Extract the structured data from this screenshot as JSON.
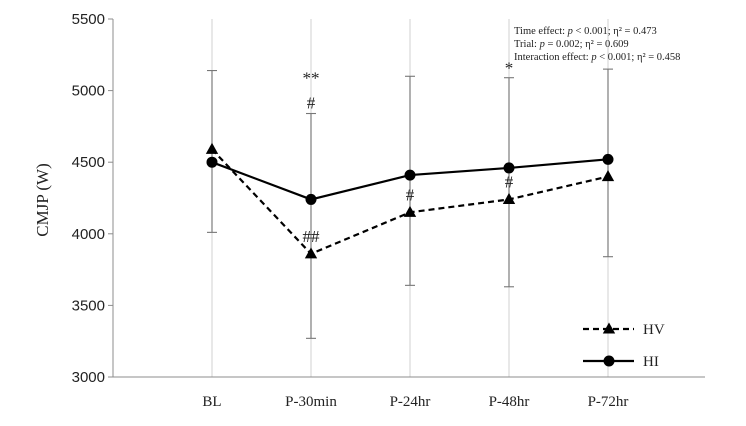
{
  "chart_data": {
    "type": "line",
    "ylabel": "CMJP (W)",
    "ylim": [
      3000,
      5500
    ],
    "yticks": [
      3000,
      3500,
      4000,
      4500,
      5000,
      5500
    ],
    "categories": [
      "BL",
      "P-30min",
      "P-24hr",
      "P-48hr",
      "P-72hr"
    ],
    "grid": "vertical",
    "legend_position": "bottom-right",
    "series": [
      {
        "name": "HV",
        "marker": "triangle",
        "line_style": "dashed",
        "values": [
          4590,
          3860,
          4150,
          4240,
          4400
        ],
        "sig_labels": [
          "",
          "##",
          "#",
          "#",
          ""
        ]
      },
      {
        "name": "HI",
        "marker": "circle",
        "line_style": "solid",
        "values": [
          4500,
          4240,
          4410,
          4460,
          4520
        ],
        "sig_labels": [
          "",
          "#",
          "",
          "",
          ""
        ]
      }
    ],
    "error_bars": [
      {
        "category": "BL",
        "lower": 4010,
        "upper": 5140
      },
      {
        "category": "P-30min",
        "lower": 3270,
        "upper": 4840
      },
      {
        "category": "P-24hr",
        "lower": 3640,
        "upper": 5100
      },
      {
        "category": "P-48hr",
        "lower": 3630,
        "upper": 5090
      },
      {
        "category": "P-72hr",
        "lower": 3840,
        "upper": 5150
      }
    ],
    "between_trial_marks": [
      "",
      "**",
      "",
      "*",
      ""
    ],
    "annotations": [
      [
        "Time effect: ",
        "p",
        " < 0.001; η² = 0.473"
      ],
      [
        "Trial: ",
        "p",
        " = 0.002; η² = 0.609"
      ],
      [
        "Interaction effect: ",
        "p",
        " < 0.001; η² = 0.458"
      ]
    ]
  }
}
